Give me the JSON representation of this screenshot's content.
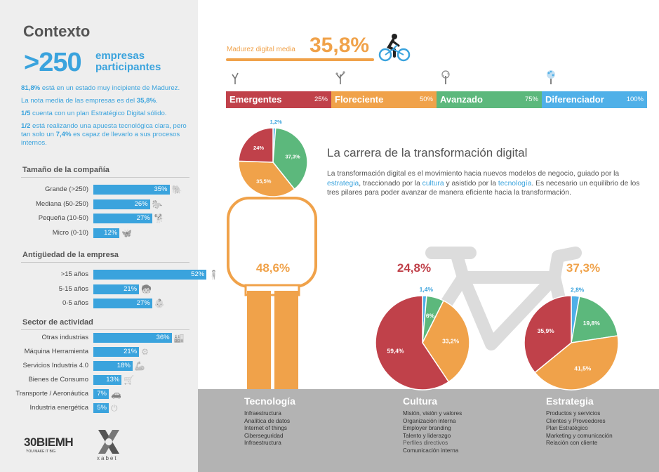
{
  "sidebar": {
    "title": "Contexto",
    "big_number": ">250",
    "big_label": "empresas participantes",
    "facts": [
      {
        "bold": "81,8%",
        "text": " está en un estado muy incipiente de Madurez."
      },
      {
        "text": "La nota media de las empresas es del ",
        "bold": "35,8%",
        "after": "."
      },
      {
        "bold": "1/5",
        "text": " cuenta con un plan Estratégico Digital sólido."
      },
      {
        "bold": "1/2",
        "text": " está realizando una apuesta tecnológica clara, pero tan solo un ",
        "bold2": "7,4%",
        "after": " es capaz de llevarlo a sus procesos internos."
      }
    ],
    "sections": [
      {
        "title": "Tamaño de la compañía",
        "rows": [
          {
            "label": "Grande (>250)",
            "value": 35,
            "text": "35%",
            "icon": "elephant-icon"
          },
          {
            "label": "Mediana (50-250)",
            "value": 26,
            "text": "26%",
            "icon": "horse-icon"
          },
          {
            "label": "Pequeña (10-50)",
            "value": 27,
            "text": "27%",
            "icon": "dog-icon"
          },
          {
            "label": "Micro (0-10)",
            "value": 12,
            "text": "12%",
            "icon": "butterfly-icon"
          }
        ]
      },
      {
        "title": "Antigüedad de la empresa",
        "rows": [
          {
            "label": ">15 años",
            "value": 52,
            "text": "52%",
            "icon": "adult-icon"
          },
          {
            "label": "5-15 años",
            "value": 21,
            "text": "21%",
            "icon": "child-icon"
          },
          {
            "label": "0-5 años",
            "value": 27,
            "text": "27%",
            "icon": "baby-icon"
          }
        ]
      },
      {
        "title": "Sector de actividad",
        "rows": [
          {
            "label": "Otras industrias",
            "value": 36,
            "text": "36%",
            "icon": "factory-icon"
          },
          {
            "label": "Máquina Herramienta",
            "value": 21,
            "text": "21%",
            "icon": "machine-tool-icon"
          },
          {
            "label": "Servicios Industria 4.0",
            "value": 18,
            "text": "18%",
            "icon": "robot-arm-icon"
          },
          {
            "label": "Bienes de Consumo",
            "value": 13,
            "text": "13%",
            "icon": "cart-icon"
          },
          {
            "label": "Transporte / Aeronáutica",
            "value": 7,
            "text": "7%",
            "icon": "car-icon"
          },
          {
            "label": "Industria energética",
            "value": 5,
            "text": "5%",
            "icon": "power-icon"
          }
        ]
      }
    ],
    "logo_30": "30BIEMH",
    "logo_30_sub": "YOU MAKE IT BIG",
    "logo_x": "xabet"
  },
  "media": {
    "label": "Madurez digital media",
    "value": "35,8%"
  },
  "levels": [
    {
      "name": "Emergentes",
      "pct": "25%",
      "color": "#c0414a",
      "icon": "sprout-icon"
    },
    {
      "name": "Floreciente",
      "pct": "50%",
      "color": "#f0a24a",
      "icon": "young-tree-icon"
    },
    {
      "name": "Avanzado",
      "pct": "75%",
      "color": "#5cb87c",
      "icon": "tree-icon"
    },
    {
      "name": "Diferenciador",
      "pct": "100%",
      "color": "#4fb0e8",
      "icon": "blossom-tree-icon"
    }
  ],
  "headline": "La carrera de la transformación digital",
  "paragraph": {
    "p1": "La transformación digital es el movimiento hacia nuevos modelos de negocio, guiado por la ",
    "h1": "estrategia",
    "p2": ",  traccionado por la ",
    "h2": "cultura",
    "p3": " y asistido por la ",
    "h3": "tecnología",
    "p4": ". Es necesario un equilibrio de los tres pilares para poder avanzar de manera eficiente hacia la transformación."
  },
  "pillars": [
    {
      "title": "Tecnología",
      "items": [
        "Infraestructura",
        "Analítica de datos",
        "Internet of things",
        "Ciberseguridad",
        "Infraestructura"
      ]
    },
    {
      "title": "Cultura",
      "items": [
        "Misión, visión y valores",
        "Organización interna",
        "Employer branding",
        "Talento y liderazgo",
        "Perfiles directivos",
        "Comunicación interna"
      ]
    },
    {
      "title": "Estrategia",
      "items": [
        "Productos y servicios",
        "Clientes y Proveedores",
        "Plan Estratégico",
        "Marketing y comunicación",
        "Relación con cliente"
      ]
    }
  ],
  "colors": {
    "red": "#c0414a",
    "orange": "#f0a24a",
    "green": "#5cb87c",
    "blue": "#4fb0e8",
    "accent": "#3aa3dd"
  },
  "chart_data": [
    {
      "type": "bar",
      "categories": [
        "Grande (>250)",
        "Mediana (50-250)",
        "Pequeña (10-50)",
        "Micro (0-10)"
      ],
      "values": [
        35,
        26,
        27,
        12
      ],
      "title": "Tamaño de la compañía"
    },
    {
      "type": "bar",
      "categories": [
        ">15 años",
        "5-15 años",
        "0-5 años"
      ],
      "values": [
        52,
        21,
        27
      ],
      "title": "Antigüedad de la empresa"
    },
    {
      "type": "bar",
      "categories": [
        "Otras industrias",
        "Máquina Herramienta",
        "Servicios Industria 4.0",
        "Bienes de Consumo",
        "Transporte / Aeronáutica",
        "Industria energética"
      ],
      "values": [
        36,
        21,
        18,
        13,
        7,
        5
      ],
      "title": "Sector de actividad"
    },
    {
      "type": "pie",
      "id": "tecnologia",
      "headline": "48,6%",
      "headline_color": "#f0a24a",
      "slices": [
        {
          "label": "1,2%",
          "value": 1.2,
          "color": "#4fb0e8"
        },
        {
          "label": "37,3%",
          "value": 37.3,
          "color": "#5cb87c"
        },
        {
          "label": "35,5%",
          "value": 35.5,
          "color": "#f0a24a"
        },
        {
          "label": "24%",
          "value": 24,
          "color": "#c0414a"
        }
      ]
    },
    {
      "type": "pie",
      "id": "cultura",
      "headline": "24,8%",
      "headline_color": "#c0414a",
      "slices": [
        {
          "label": "1,4%",
          "value": 1.4,
          "color": "#4fb0e8"
        },
        {
          "label": "6%",
          "value": 6,
          "color": "#5cb87c"
        },
        {
          "label": "33,2%",
          "value": 33.2,
          "color": "#f0a24a"
        },
        {
          "label": "59,4%",
          "value": 59.4,
          "color": "#c0414a"
        }
      ]
    },
    {
      "type": "pie",
      "id": "estrategia",
      "headline": "37,3%",
      "headline_color": "#f0a24a",
      "slices": [
        {
          "label": "2,8%",
          "value": 2.8,
          "color": "#4fb0e8"
        },
        {
          "label": "19,8%",
          "value": 19.8,
          "color": "#5cb87c"
        },
        {
          "label": "41,5%",
          "value": 41.5,
          "color": "#f0a24a"
        },
        {
          "label": "35,9%",
          "value": 35.9,
          "color": "#c0414a"
        }
      ]
    }
  ]
}
